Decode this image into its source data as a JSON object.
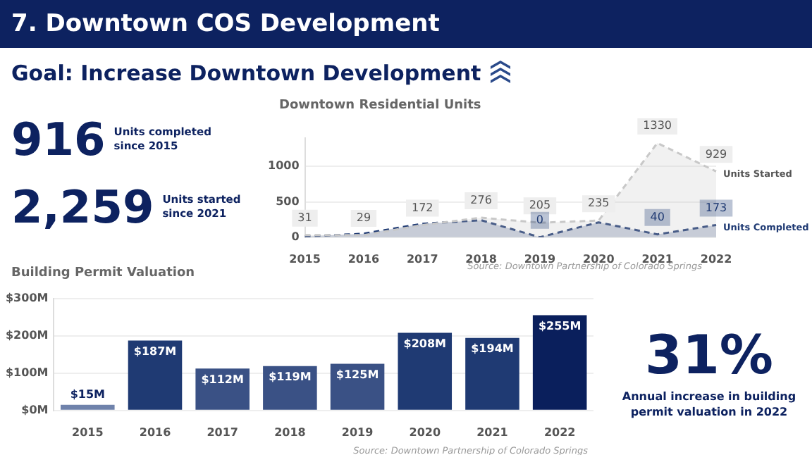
{
  "chart_data": [
    {
      "type": "other",
      "title": "7. Downtown COS Development",
      "subtitle": "Goal: Increase Downtown Development",
      "annotations": [
        "916",
        "Units completed since 2015",
        "2,259",
        "Units started since 2021"
      ]
    },
    {
      "type": "area",
      "title": "Downtown Residential Units",
      "categories": [
        "2015",
        "2016",
        "2017",
        "2018",
        "2019",
        "2020",
        "2021",
        "2022"
      ],
      "ylim": [
        0,
        1400
      ],
      "yticks": [
        0,
        500,
        1000
      ],
      "grid": "y",
      "legend": "right",
      "line_style": "dashed",
      "marker": "none",
      "series": [
        {
          "name": "Units Started",
          "color": "#c8c8c8",
          "values": [
            31,
            29,
            172,
            276,
            205,
            235,
            1330,
            929
          ],
          "value_labels": [
            "31",
            "29",
            "172",
            "276",
            "205",
            "235",
            "1330",
            "929"
          ]
        },
        {
          "name": "Units Completed",
          "color": "#1f3a73",
          "values": [
            10,
            50,
            190,
            240,
            0,
            210,
            40,
            173
          ],
          "value_labels": [
            null,
            null,
            null,
            null,
            "0",
            null,
            "40",
            "173"
          ]
        }
      ],
      "annotations": [
        "Source: Downtown Partnership of Colorado Springs"
      ]
    },
    {
      "type": "bar",
      "title": "Building Permit Valuation",
      "categories": [
        "2015",
        "2016",
        "2017",
        "2018",
        "2019",
        "2020",
        "2021",
        "2022"
      ],
      "values": [
        15,
        187,
        112,
        119,
        125,
        208,
        194,
        255
      ],
      "value_labels": [
        "$15M",
        "$187M",
        "$112M",
        "$119M",
        "$125M",
        "$208M",
        "$194M",
        "$255M"
      ],
      "colors": [
        "#6f82ab",
        "#1f3a73",
        "#3a5185",
        "#3a5185",
        "#3a5185",
        "#1f3a73",
        "#1f3a73",
        "#0a1f5c"
      ],
      "ylim": [
        0,
        300
      ],
      "yticks": [
        {
          "value": 0,
          "label": "$0M"
        },
        {
          "value": 100,
          "label": "$100M"
        },
        {
          "value": 200,
          "label": "$200M"
        },
        {
          "value": 300,
          "label": "$300M"
        }
      ],
      "grid": "y",
      "annotations": [
        "Source: Downtown Partnership of Colorado Springs"
      ]
    },
    {
      "type": "other",
      "annotations": [
        "31%",
        "Annual increase in building permit valuation in 2022"
      ]
    }
  ]
}
